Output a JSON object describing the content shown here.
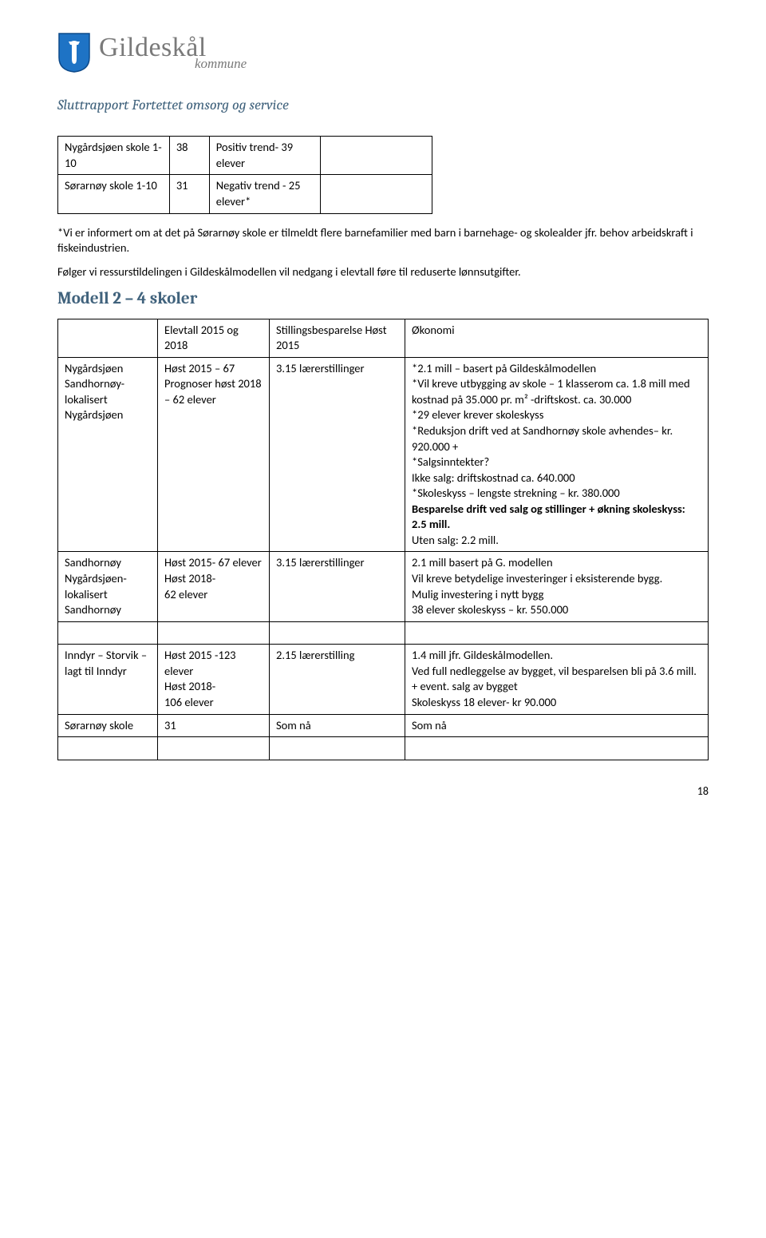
{
  "logo": {
    "brand_main": "Gildeskål",
    "brand_sub": "kommune",
    "shield_fill": "#1e73c5",
    "shield_stroke": "#0d4a8a"
  },
  "doc_title": "Sluttrapport Fortettet omsorg og service",
  "table1": {
    "rows": [
      [
        "Nygårdsjøen skole 1-10",
        "38",
        "Positiv trend- 39 elever",
        ""
      ],
      [
        "Sørarnøy skole 1-10",
        "31",
        "Negativ trend - 25 elever*",
        ""
      ]
    ]
  },
  "note": "*Vi er informert om at det på Sørarnøy skole er tilmeldt flere barnefamilier med barn i barnehage- og skolealder jfr. behov arbeidskraft i fiskeindustrien.",
  "para2": "Følger vi ressurstildelingen i Gildeskålmodellen vil nedgang i elevtall føre til reduserte lønnsutgifter.",
  "heading2": "Modell 2 – 4 skoler",
  "table2": {
    "header": [
      "",
      "Elevtall 2015 og 2018",
      "Stillingsbesparelse Høst 2015",
      "Økonomi"
    ],
    "rows": [
      {
        "c1": "Nygårdsjøen Sandhornøy- lokalisert Nygårdsjøen",
        "c2": " Høst 2015 – 67 Prognoser høst 2018 – 62 elever",
        "c3": "3.15 lærerstillinger",
        "c4_lines": [
          "*2.1 mill – basert på Gildeskålmodellen",
          "*Vil kreve utbygging av skole – 1 klasserom ca. 1.8  mill med kostnad på 35.000 pr. m²  -driftskost. ca. 30.000",
          "*29 elever krever skoleskyss",
          "*Reduksjon drift ved at Sandhornøy skole avhendes– kr. 920.000 +",
          "*Salgsinntekter?",
          "Ikke salg: driftskostnad ca. 640.000",
          "*Skoleskyss – lengste strekning – kr. 380.000"
        ],
        "c4_bold": "Besparelse drift ved salg og stillinger + økning skoleskyss: 2.5 mill.",
        "c4_after": "Uten salg: 2.2 mill."
      },
      {
        "c1": "Sandhornøy Nygårdsjøen- lokalisert Sandhornøy",
        "c2": "Høst 2015- 67 elever\nHøst 2018-\n62 elever",
        "c3": "3.15 lærerstillinger",
        "c4": "2.1 mill basert på G. modellen\nVil kreve betydelige investeringer i eksisterende bygg.\nMulig investering i nytt bygg\n38 elever skoleskyss – kr. 550.000"
      }
    ],
    "rows2": [
      {
        "c1": "Inndyr – Storvik – lagt til Inndyr",
        "c2": "Høst 2015 -123 elever\nHøst 2018-\n106 elever",
        "c3": "2.15 lærerstilling",
        "c4": "1.4 mill jfr. Gildeskålmodellen.\nVed full nedleggelse av bygget, vil besparelsen bli på 3.6 mill. + event. salg av bygget\nSkoleskyss 18 elever- kr 90.000"
      },
      {
        "c1": "Sørarnøy skole",
        "c2": "31",
        "c3": "Som nå",
        "c4": "Som nå"
      }
    ]
  },
  "page_number": "18"
}
